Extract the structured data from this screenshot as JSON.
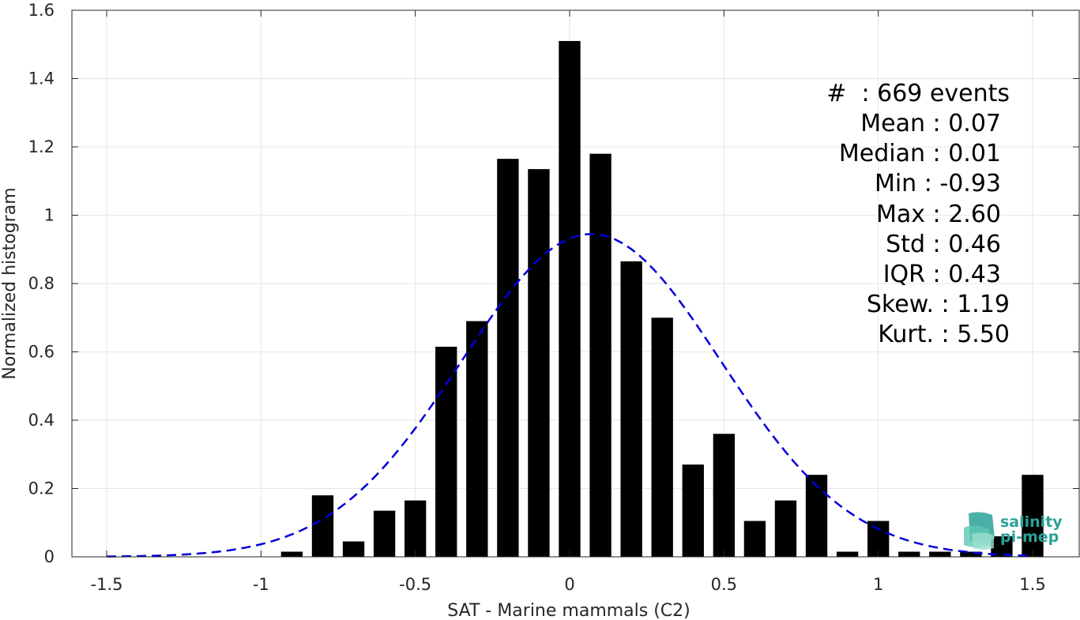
{
  "chart_data": {
    "type": "bar",
    "xlabel": "SAT - Marine mammals (C2)",
    "ylabel": "Normalized histogram",
    "xlim": [
      -1.5,
      1.5
    ],
    "ylim": [
      0,
      1.6
    ],
    "grid": true,
    "x_ticks": [
      "-1.5",
      "-1",
      "-0.5",
      "0",
      "0.5",
      "1",
      "1.5"
    ],
    "y_ticks": [
      "0",
      "0.2",
      "0.4",
      "0.6",
      "0.8",
      "1",
      "1.2",
      "1.4",
      "1.6"
    ],
    "bar_color": "#000000",
    "bar_width": 0.07,
    "bins": [
      {
        "x": -0.9,
        "y": 0.015
      },
      {
        "x": -0.8,
        "y": 0.18
      },
      {
        "x": -0.7,
        "y": 0.045
      },
      {
        "x": -0.6,
        "y": 0.135
      },
      {
        "x": -0.5,
        "y": 0.165
      },
      {
        "x": -0.4,
        "y": 0.615
      },
      {
        "x": -0.3,
        "y": 0.69
      },
      {
        "x": -0.2,
        "y": 1.165
      },
      {
        "x": -0.1,
        "y": 1.135
      },
      {
        "x": 0.0,
        "y": 1.51
      },
      {
        "x": 0.1,
        "y": 1.18
      },
      {
        "x": 0.2,
        "y": 0.865
      },
      {
        "x": 0.3,
        "y": 0.7
      },
      {
        "x": 0.4,
        "y": 0.27
      },
      {
        "x": 0.5,
        "y": 0.36
      },
      {
        "x": 0.6,
        "y": 0.105
      },
      {
        "x": 0.7,
        "y": 0.165
      },
      {
        "x": 0.8,
        "y": 0.24
      },
      {
        "x": 0.9,
        "y": 0.015
      },
      {
        "x": 1.0,
        "y": 0.105
      },
      {
        "x": 1.1,
        "y": 0.015
      },
      {
        "x": 1.2,
        "y": 0.015
      },
      {
        "x": 1.3,
        "y": 0.015
      },
      {
        "x": 1.4,
        "y": 0.06
      },
      {
        "x": 1.5,
        "y": 0.24
      }
    ],
    "fit_curve": {
      "type": "gaussian",
      "style": "dashed",
      "color": "#0000dd",
      "mean": 0.07,
      "std": 0.42,
      "peak": 0.945,
      "x_range": [
        -1.5,
        1.5
      ]
    }
  },
  "stats": [
    {
      "label": "#  : 669 events"
    },
    {
      "label": "Mean : 0.07"
    },
    {
      "label": "Median : 0.01"
    },
    {
      "label": "Min : -0.93"
    },
    {
      "label": "Max : 2.60"
    },
    {
      "label": "Std : 0.46"
    },
    {
      "label": "IQR : 0.43"
    },
    {
      "label": "Skew. : 1.19"
    },
    {
      "label": "Kurt. : 5.50"
    }
  ],
  "logo": {
    "line1": "salinity",
    "line2": "pi-mep",
    "color": "#2aa198"
  }
}
